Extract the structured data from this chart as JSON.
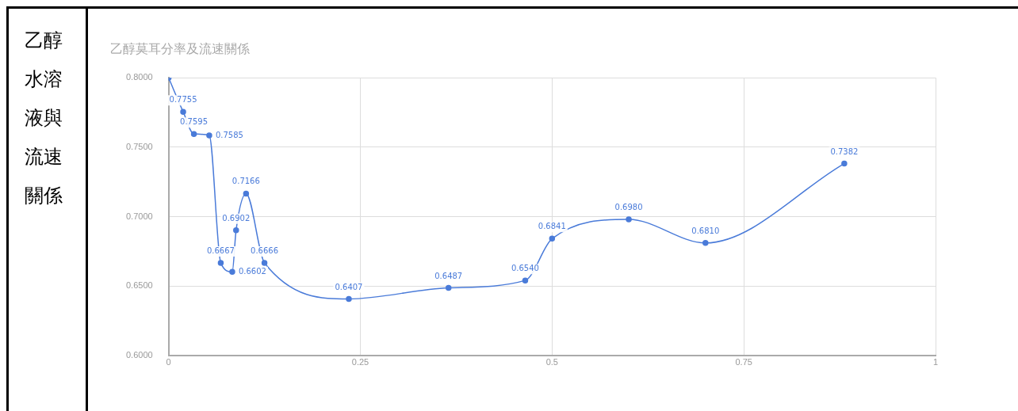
{
  "chart_data": {
    "type": "line",
    "title": "乙醇莫耳分率及流速關係",
    "annotations": [
      "乙醇水溶液與流速關係"
    ],
    "x": [
      0,
      0.019,
      0.033,
      0.053,
      0.068,
      0.083,
      0.088,
      0.101,
      0.125,
      0.235,
      0.365,
      0.465,
      0.5,
      0.6,
      0.7,
      0.881
    ],
    "series": [
      {
        "color": "#4a7bd9",
        "values": [
          0.8,
          0.7755,
          0.7595,
          0.7585,
          0.6667,
          0.6602,
          0.6902,
          0.7166,
          0.6666,
          0.6407,
          0.6487,
          0.654,
          0.6841,
          0.698,
          0.681,
          0.7382
        ],
        "value_labels": [
          null,
          "0.7755",
          "0.7595",
          "0.7585",
          "0.6667",
          "0.6602",
          "0.6902",
          "0.7166",
          "0.6666",
          "0.6407",
          "0.6487",
          "0.6540",
          "0.6841",
          "0.6980",
          "0.6810",
          "0.7382"
        ]
      }
    ],
    "xlim": [
      0,
      1
    ],
    "xticks": [
      0,
      0.25,
      0.5,
      0.75,
      1
    ],
    "ylim": [
      0.6,
      0.8
    ],
    "yticks": [
      {
        "value": 0.6,
        "label": "0.6000"
      },
      {
        "value": 0.65,
        "label": "0.6500"
      },
      {
        "value": 0.7,
        "label": "0.7000"
      },
      {
        "value": 0.75,
        "label": "0.7500"
      },
      {
        "value": 0.8,
        "label": "0.8000"
      }
    ],
    "grid": true,
    "legend": false,
    "marker": "circle",
    "line_style": "solid"
  }
}
